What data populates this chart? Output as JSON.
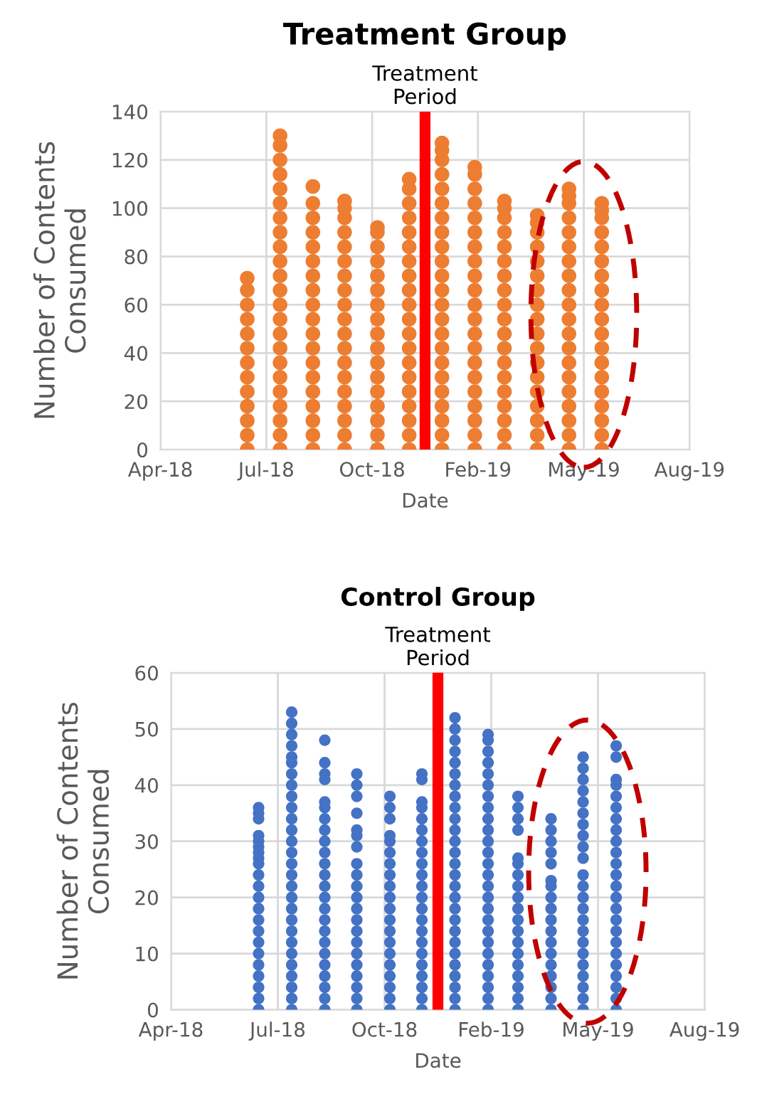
{
  "chart_data": [
    {
      "type": "scatter",
      "title": "Treatment Group",
      "xlabel": "Date",
      "ylabel": "Number of Contents\nConsumed",
      "marker": "circle",
      "grid": true,
      "legend": false,
      "xlim": [
        "2018-04-09",
        "2019-08-22"
      ],
      "ylim": [
        0,
        140
      ],
      "yticks": [
        0,
        20,
        40,
        60,
        80,
        100,
        120,
        140
      ],
      "xticks": [
        {
          "value": "2018-04-09",
          "label": "Apr-18"
        },
        {
          "value": "2018-07-18",
          "label": "Jul-18"
        },
        {
          "value": "2018-10-26",
          "label": "Oct-18"
        },
        {
          "value": "2019-02-03",
          "label": "Feb-19"
        },
        {
          "value": "2019-05-14",
          "label": "May-19"
        },
        {
          "value": "2019-08-22",
          "label": "Aug-19"
        }
      ],
      "ref_lines": [
        {
          "axis": "x",
          "value": "2018-12-15",
          "label": "Treatment\nPeriod",
          "color": "#ff0000"
        }
      ],
      "series": [
        {
          "color": "#ed7d31",
          "x": [
            "2018-06-30",
            "2018-06-30",
            "2018-06-30",
            "2018-06-30",
            "2018-06-30",
            "2018-06-30",
            "2018-06-30",
            "2018-06-30",
            "2018-06-30",
            "2018-06-30",
            "2018-06-30",
            "2018-06-30",
            "2018-06-30"
          ],
          "values": [
            0,
            6,
            12,
            18,
            24,
            30,
            36,
            42,
            48,
            54,
            60,
            66,
            71
          ]
        },
        {
          "color": "#ed7d31",
          "x": [
            "2018-07-31",
            "2018-07-31",
            "2018-07-31",
            "2018-07-31",
            "2018-07-31",
            "2018-07-31",
            "2018-07-31",
            "2018-07-31",
            "2018-07-31",
            "2018-07-31",
            "2018-07-31",
            "2018-07-31",
            "2018-07-31",
            "2018-07-31",
            "2018-07-31",
            "2018-07-31",
            "2018-07-31",
            "2018-07-31",
            "2018-07-31",
            "2018-07-31",
            "2018-07-31",
            "2018-07-31",
            "2018-07-31"
          ],
          "values": [
            0,
            6,
            12,
            18,
            24,
            30,
            36,
            42,
            48,
            54,
            60,
            66,
            72,
            78,
            84,
            90,
            96,
            102,
            108,
            114,
            120,
            126,
            130
          ]
        },
        {
          "color": "#ed7d31",
          "x": [
            "2018-08-31",
            "2018-08-31",
            "2018-08-31",
            "2018-08-31",
            "2018-08-31",
            "2018-08-31",
            "2018-08-31",
            "2018-08-31",
            "2018-08-31",
            "2018-08-31",
            "2018-08-31",
            "2018-08-31",
            "2018-08-31",
            "2018-08-31",
            "2018-08-31",
            "2018-08-31",
            "2018-08-31",
            "2018-08-31",
            "2018-08-31"
          ],
          "values": [
            0,
            6,
            12,
            18,
            24,
            30,
            36,
            42,
            48,
            54,
            60,
            66,
            72,
            78,
            84,
            90,
            96,
            102,
            109
          ]
        },
        {
          "color": "#ed7d31",
          "x": [
            "2018-09-30",
            "2018-09-30",
            "2018-09-30",
            "2018-09-30",
            "2018-09-30",
            "2018-09-30",
            "2018-09-30",
            "2018-09-30",
            "2018-09-30",
            "2018-09-30",
            "2018-09-30",
            "2018-09-30",
            "2018-09-30",
            "2018-09-30",
            "2018-09-30",
            "2018-09-30",
            "2018-09-30",
            "2018-09-30",
            "2018-09-30"
          ],
          "values": [
            0,
            6,
            12,
            18,
            24,
            30,
            36,
            42,
            48,
            54,
            60,
            66,
            72,
            78,
            84,
            90,
            96,
            100,
            103
          ]
        },
        {
          "color": "#ed7d31",
          "x": [
            "2018-10-31",
            "2018-10-31",
            "2018-10-31",
            "2018-10-31",
            "2018-10-31",
            "2018-10-31",
            "2018-10-31",
            "2018-10-31",
            "2018-10-31",
            "2018-10-31",
            "2018-10-31",
            "2018-10-31",
            "2018-10-31",
            "2018-10-31",
            "2018-10-31",
            "2018-10-31",
            "2018-10-31"
          ],
          "values": [
            0,
            6,
            12,
            18,
            24,
            30,
            36,
            42,
            48,
            54,
            60,
            66,
            72,
            78,
            84,
            90,
            92
          ]
        },
        {
          "color": "#ed7d31",
          "x": [
            "2018-11-30",
            "2018-11-30",
            "2018-11-30",
            "2018-11-30",
            "2018-11-30",
            "2018-11-30",
            "2018-11-30",
            "2018-11-30",
            "2018-11-30",
            "2018-11-30",
            "2018-11-30",
            "2018-11-30",
            "2018-11-30",
            "2018-11-30",
            "2018-11-30",
            "2018-11-30",
            "2018-11-30",
            "2018-11-30",
            "2018-11-30",
            "2018-11-30"
          ],
          "values": [
            0,
            6,
            12,
            18,
            24,
            30,
            36,
            42,
            48,
            54,
            60,
            66,
            72,
            78,
            84,
            90,
            96,
            102,
            108,
            112
          ]
        },
        {
          "color": "#ed7d31",
          "x": [
            "2018-12-31",
            "2018-12-31",
            "2018-12-31",
            "2018-12-31",
            "2018-12-31",
            "2018-12-31",
            "2018-12-31",
            "2018-12-31",
            "2018-12-31",
            "2018-12-31",
            "2018-12-31",
            "2018-12-31",
            "2018-12-31",
            "2018-12-31",
            "2018-12-31",
            "2018-12-31",
            "2018-12-31",
            "2018-12-31",
            "2018-12-31",
            "2018-12-31",
            "2018-12-31",
            "2018-12-31",
            "2018-12-31"
          ],
          "values": [
            0,
            6,
            12,
            18,
            24,
            30,
            36,
            42,
            48,
            54,
            60,
            66,
            72,
            78,
            84,
            90,
            96,
            102,
            108,
            114,
            120,
            124,
            127
          ]
        },
        {
          "color": "#ed7d31",
          "x": [
            "2019-01-31",
            "2019-01-31",
            "2019-01-31",
            "2019-01-31",
            "2019-01-31",
            "2019-01-31",
            "2019-01-31",
            "2019-01-31",
            "2019-01-31",
            "2019-01-31",
            "2019-01-31",
            "2019-01-31",
            "2019-01-31",
            "2019-01-31",
            "2019-01-31",
            "2019-01-31",
            "2019-01-31",
            "2019-01-31",
            "2019-01-31",
            "2019-01-31",
            "2019-01-31"
          ],
          "values": [
            0,
            6,
            12,
            18,
            24,
            30,
            36,
            42,
            48,
            54,
            60,
            66,
            72,
            78,
            84,
            90,
            96,
            102,
            108,
            114,
            117
          ]
        },
        {
          "color": "#ed7d31",
          "x": [
            "2019-02-28",
            "2019-02-28",
            "2019-02-28",
            "2019-02-28",
            "2019-02-28",
            "2019-02-28",
            "2019-02-28",
            "2019-02-28",
            "2019-02-28",
            "2019-02-28",
            "2019-02-28",
            "2019-02-28",
            "2019-02-28",
            "2019-02-28",
            "2019-02-28",
            "2019-02-28",
            "2019-02-28",
            "2019-02-28",
            "2019-02-28"
          ],
          "values": [
            0,
            6,
            12,
            18,
            24,
            30,
            36,
            42,
            48,
            54,
            60,
            66,
            72,
            78,
            84,
            90,
            96,
            100,
            103
          ]
        },
        {
          "color": "#ed7d31",
          "x": [
            "2019-03-31",
            "2019-03-31",
            "2019-03-31",
            "2019-03-31",
            "2019-03-31",
            "2019-03-31",
            "2019-03-31",
            "2019-03-31",
            "2019-03-31",
            "2019-03-31",
            "2019-03-31",
            "2019-03-31",
            "2019-03-31",
            "2019-03-31",
            "2019-03-31",
            "2019-03-31",
            "2019-03-31",
            "2019-03-31"
          ],
          "values": [
            0,
            6,
            12,
            18,
            24,
            30,
            36,
            42,
            48,
            54,
            60,
            66,
            72,
            78,
            84,
            90,
            94,
            97
          ]
        },
        {
          "color": "#ed7d31",
          "x": [
            "2019-04-30",
            "2019-04-30",
            "2019-04-30",
            "2019-04-30",
            "2019-04-30",
            "2019-04-30",
            "2019-04-30",
            "2019-04-30",
            "2019-04-30",
            "2019-04-30",
            "2019-04-30",
            "2019-04-30",
            "2019-04-30",
            "2019-04-30",
            "2019-04-30",
            "2019-04-30",
            "2019-04-30",
            "2019-04-30",
            "2019-04-30",
            "2019-04-30"
          ],
          "values": [
            0,
            6,
            12,
            18,
            24,
            30,
            36,
            42,
            48,
            54,
            60,
            66,
            72,
            78,
            84,
            90,
            96,
            102,
            105,
            108
          ]
        },
        {
          "color": "#ed7d31",
          "x": [
            "2019-05-31",
            "2019-05-31",
            "2019-05-31",
            "2019-05-31",
            "2019-05-31",
            "2019-05-31",
            "2019-05-31",
            "2019-05-31",
            "2019-05-31",
            "2019-05-31",
            "2019-05-31",
            "2019-05-31",
            "2019-05-31",
            "2019-05-31",
            "2019-05-31",
            "2019-05-31",
            "2019-05-31",
            "2019-05-31",
            "2019-05-31"
          ],
          "values": [
            0,
            6,
            12,
            18,
            24,
            30,
            36,
            42,
            48,
            54,
            60,
            66,
            72,
            78,
            84,
            90,
            96,
            99,
            102
          ]
        }
      ]
    },
    {
      "type": "scatter",
      "title": "Control Group",
      "xlabel": "Date",
      "ylabel": "Number of Contents\nConsumed",
      "marker": "circle",
      "grid": true,
      "legend": false,
      "xlim": [
        "2018-04-09",
        "2019-08-22"
      ],
      "ylim": [
        0,
        60
      ],
      "yticks": [
        0,
        10,
        20,
        30,
        40,
        50,
        60
      ],
      "xticks": [
        {
          "value": "2018-04-09",
          "label": "Apr-18"
        },
        {
          "value": "2018-07-18",
          "label": "Jul-18"
        },
        {
          "value": "2018-10-26",
          "label": "Oct-18"
        },
        {
          "value": "2019-02-03",
          "label": "Feb-19"
        },
        {
          "value": "2019-05-14",
          "label": "May-19"
        },
        {
          "value": "2019-08-22",
          "label": "Aug-19"
        }
      ],
      "ref_lines": [
        {
          "axis": "x",
          "value": "2018-12-15",
          "label": "Treatment\nPeriod",
          "color": "#ff0000"
        }
      ],
      "series": [
        {
          "color": "#4472c4",
          "x": [
            "2018-06-30",
            "2018-06-30",
            "2018-06-30",
            "2018-06-30",
            "2018-06-30",
            "2018-06-30",
            "2018-06-30",
            "2018-06-30",
            "2018-06-30",
            "2018-06-30",
            "2018-06-30",
            "2018-06-30",
            "2018-06-30",
            "2018-06-30",
            "2018-06-30",
            "2018-06-30",
            "2018-06-30",
            "2018-06-30",
            "2018-06-30",
            "2018-06-30",
            "2018-06-30",
            "2018-06-30"
          ],
          "values": [
            0,
            2,
            4,
            6,
            8,
            10,
            12,
            14,
            16,
            18,
            20,
            22,
            24,
            26,
            27,
            28,
            29,
            30,
            31,
            34,
            35,
            36
          ]
        },
        {
          "color": "#4472c4",
          "x": [
            "2018-07-31",
            "2018-07-31",
            "2018-07-31",
            "2018-07-31",
            "2018-07-31",
            "2018-07-31",
            "2018-07-31",
            "2018-07-31",
            "2018-07-31",
            "2018-07-31",
            "2018-07-31",
            "2018-07-31",
            "2018-07-31",
            "2018-07-31",
            "2018-07-31",
            "2018-07-31",
            "2018-07-31",
            "2018-07-31",
            "2018-07-31",
            "2018-07-31",
            "2018-07-31",
            "2018-07-31",
            "2018-07-31",
            "2018-07-31",
            "2018-07-31",
            "2018-07-31",
            "2018-07-31",
            "2018-07-31"
          ],
          "values": [
            0,
            2,
            4,
            6,
            8,
            10,
            12,
            14,
            16,
            18,
            20,
            22,
            24,
            26,
            28,
            30,
            32,
            34,
            36,
            38,
            40,
            42,
            44,
            45,
            47,
            49,
            51,
            53
          ]
        },
        {
          "color": "#4472c4",
          "x": [
            "2018-08-31",
            "2018-08-31",
            "2018-08-31",
            "2018-08-31",
            "2018-08-31",
            "2018-08-31",
            "2018-08-31",
            "2018-08-31",
            "2018-08-31",
            "2018-08-31",
            "2018-08-31",
            "2018-08-31",
            "2018-08-31",
            "2018-08-31",
            "2018-08-31",
            "2018-08-31",
            "2018-08-31",
            "2018-08-31",
            "2018-08-31",
            "2018-08-31",
            "2018-08-31",
            "2018-08-31",
            "2018-08-31",
            "2018-08-31"
          ],
          "values": [
            0,
            2,
            4,
            6,
            8,
            10,
            12,
            14,
            16,
            18,
            20,
            22,
            24,
            26,
            28,
            30,
            32,
            34,
            36,
            37,
            41,
            42,
            44,
            48
          ]
        },
        {
          "color": "#4472c4",
          "x": [
            "2018-09-30",
            "2018-09-30",
            "2018-09-30",
            "2018-09-30",
            "2018-09-30",
            "2018-09-30",
            "2018-09-30",
            "2018-09-30",
            "2018-09-30",
            "2018-09-30",
            "2018-09-30",
            "2018-09-30",
            "2018-09-30",
            "2018-09-30",
            "2018-09-30",
            "2018-09-30",
            "2018-09-30",
            "2018-09-30",
            "2018-09-30",
            "2018-09-30",
            "2018-09-30"
          ],
          "values": [
            0,
            2,
            4,
            6,
            8,
            10,
            12,
            14,
            16,
            18,
            20,
            22,
            24,
            26,
            29,
            31,
            32,
            35,
            38,
            40,
            42
          ]
        },
        {
          "color": "#4472c4",
          "x": [
            "2018-10-31",
            "2018-10-31",
            "2018-10-31",
            "2018-10-31",
            "2018-10-31",
            "2018-10-31",
            "2018-10-31",
            "2018-10-31",
            "2018-10-31",
            "2018-10-31",
            "2018-10-31",
            "2018-10-31",
            "2018-10-31",
            "2018-10-31",
            "2018-10-31",
            "2018-10-31",
            "2018-10-31",
            "2018-10-31",
            "2018-10-31",
            "2018-10-31"
          ],
          "values": [
            0,
            2,
            4,
            6,
            8,
            10,
            12,
            14,
            16,
            18,
            20,
            22,
            24,
            26,
            28,
            30,
            31,
            34,
            36,
            38
          ]
        },
        {
          "color": "#4472c4",
          "x": [
            "2018-11-30",
            "2018-11-30",
            "2018-11-30",
            "2018-11-30",
            "2018-11-30",
            "2018-11-30",
            "2018-11-30",
            "2018-11-30",
            "2018-11-30",
            "2018-11-30",
            "2018-11-30",
            "2018-11-30",
            "2018-11-30",
            "2018-11-30",
            "2018-11-30",
            "2018-11-30",
            "2018-11-30",
            "2018-11-30",
            "2018-11-30",
            "2018-11-30",
            "2018-11-30",
            "2018-11-30"
          ],
          "values": [
            0,
            2,
            4,
            6,
            8,
            10,
            12,
            14,
            16,
            18,
            20,
            22,
            24,
            26,
            28,
            30,
            32,
            34,
            36,
            37,
            41,
            42
          ]
        },
        {
          "color": "#4472c4",
          "x": [
            "2018-12-31",
            "2018-12-31",
            "2018-12-31",
            "2018-12-31",
            "2018-12-31",
            "2018-12-31",
            "2018-12-31",
            "2018-12-31",
            "2018-12-31",
            "2018-12-31",
            "2018-12-31",
            "2018-12-31",
            "2018-12-31",
            "2018-12-31",
            "2018-12-31",
            "2018-12-31",
            "2018-12-31",
            "2018-12-31",
            "2018-12-31",
            "2018-12-31",
            "2018-12-31",
            "2018-12-31",
            "2018-12-31",
            "2018-12-31",
            "2018-12-31",
            "2018-12-31",
            "2018-12-31"
          ],
          "values": [
            0,
            2,
            4,
            6,
            8,
            10,
            12,
            14,
            16,
            18,
            20,
            22,
            24,
            26,
            28,
            30,
            32,
            34,
            36,
            38,
            40,
            42,
            44,
            46,
            48,
            50,
            52
          ]
        },
        {
          "color": "#4472c4",
          "x": [
            "2019-01-31",
            "2019-01-31",
            "2019-01-31",
            "2019-01-31",
            "2019-01-31",
            "2019-01-31",
            "2019-01-31",
            "2019-01-31",
            "2019-01-31",
            "2019-01-31",
            "2019-01-31",
            "2019-01-31",
            "2019-01-31",
            "2019-01-31",
            "2019-01-31",
            "2019-01-31",
            "2019-01-31",
            "2019-01-31",
            "2019-01-31",
            "2019-01-31",
            "2019-01-31",
            "2019-01-31",
            "2019-01-31",
            "2019-01-31",
            "2019-01-31",
            "2019-01-31"
          ],
          "values": [
            0,
            2,
            4,
            6,
            8,
            10,
            12,
            14,
            16,
            18,
            20,
            22,
            24,
            26,
            28,
            30,
            32,
            34,
            36,
            38,
            40,
            42,
            44,
            46,
            48,
            49
          ]
        },
        {
          "color": "#4472c4",
          "x": [
            "2019-02-28",
            "2019-02-28",
            "2019-02-28",
            "2019-02-28",
            "2019-02-28",
            "2019-02-28",
            "2019-02-28",
            "2019-02-28",
            "2019-02-28",
            "2019-02-28",
            "2019-02-28",
            "2019-02-28",
            "2019-02-28",
            "2019-02-28",
            "2019-02-28",
            "2019-02-28",
            "2019-02-28",
            "2019-02-28",
            "2019-02-28"
          ],
          "values": [
            0,
            2,
            4,
            6,
            8,
            10,
            12,
            14,
            16,
            18,
            20,
            22,
            24,
            26,
            27,
            32,
            34,
            36,
            38
          ]
        },
        {
          "color": "#4472c4",
          "x": [
            "2019-03-31",
            "2019-03-31",
            "2019-03-31",
            "2019-03-31",
            "2019-03-31",
            "2019-03-31",
            "2019-03-31",
            "2019-03-31",
            "2019-03-31",
            "2019-03-31",
            "2019-03-31",
            "2019-03-31",
            "2019-03-31",
            "2019-03-31",
            "2019-03-31",
            "2019-03-31",
            "2019-03-31",
            "2019-03-31"
          ],
          "values": [
            0,
            2,
            4,
            6,
            8,
            10,
            12,
            14,
            16,
            18,
            20,
            22,
            23,
            26,
            28,
            30,
            32,
            34
          ]
        },
        {
          "color": "#4472c4",
          "x": [
            "2019-04-30",
            "2019-04-30",
            "2019-04-30",
            "2019-04-30",
            "2019-04-30",
            "2019-04-30",
            "2019-04-30",
            "2019-04-30",
            "2019-04-30",
            "2019-04-30",
            "2019-04-30",
            "2019-04-30",
            "2019-04-30",
            "2019-04-30",
            "2019-04-30",
            "2019-04-30",
            "2019-04-30",
            "2019-04-30",
            "2019-04-30",
            "2019-04-30",
            "2019-04-30",
            "2019-04-30",
            "2019-04-30"
          ],
          "values": [
            0,
            2,
            4,
            6,
            8,
            10,
            12,
            14,
            16,
            18,
            20,
            22,
            24,
            27,
            29,
            31,
            33,
            35,
            37,
            39,
            41,
            43,
            45
          ]
        },
        {
          "color": "#4472c4",
          "x": [
            "2019-05-31",
            "2019-05-31",
            "2019-05-31",
            "2019-05-31",
            "2019-05-31",
            "2019-05-31",
            "2019-05-31",
            "2019-05-31",
            "2019-05-31",
            "2019-05-31",
            "2019-05-31",
            "2019-05-31",
            "2019-05-31",
            "2019-05-31",
            "2019-05-31",
            "2019-05-31",
            "2019-05-31",
            "2019-05-31",
            "2019-05-31",
            "2019-05-31",
            "2019-05-31",
            "2019-05-31",
            "2019-05-31",
            "2019-05-31"
          ],
          "values": [
            0,
            2,
            4,
            6,
            8,
            10,
            12,
            14,
            16,
            18,
            20,
            22,
            24,
            26,
            28,
            30,
            32,
            34,
            36,
            38,
            40,
            41,
            45,
            47
          ]
        }
      ]
    }
  ]
}
